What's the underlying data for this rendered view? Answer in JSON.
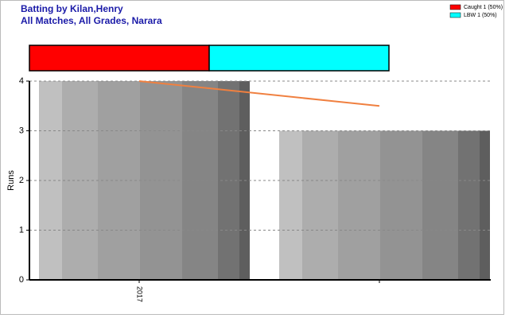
{
  "chart_data": {
    "type": "bar",
    "title": "Batting by Kilan,Henry",
    "subtitle": "All Matches, All Grades, Narara",
    "y_label": "Runs",
    "categories": [
      "2017",
      null
    ],
    "values": [
      4,
      3
    ],
    "trend": [
      4,
      3.5
    ],
    "trend_color": "#f08040",
    "ylim": [
      0,
      4
    ],
    "yticks": [
      0,
      1,
      2,
      3,
      4
    ],
    "grid": true,
    "dismissals": [
      {
        "name": "Caught 1 (50%)",
        "value": 50,
        "color": "#ff0000"
      },
      {
        "name": "LBW 1 (50%)",
        "value": 50,
        "color": "#00ffff"
      }
    ],
    "legend": "top-right"
  }
}
